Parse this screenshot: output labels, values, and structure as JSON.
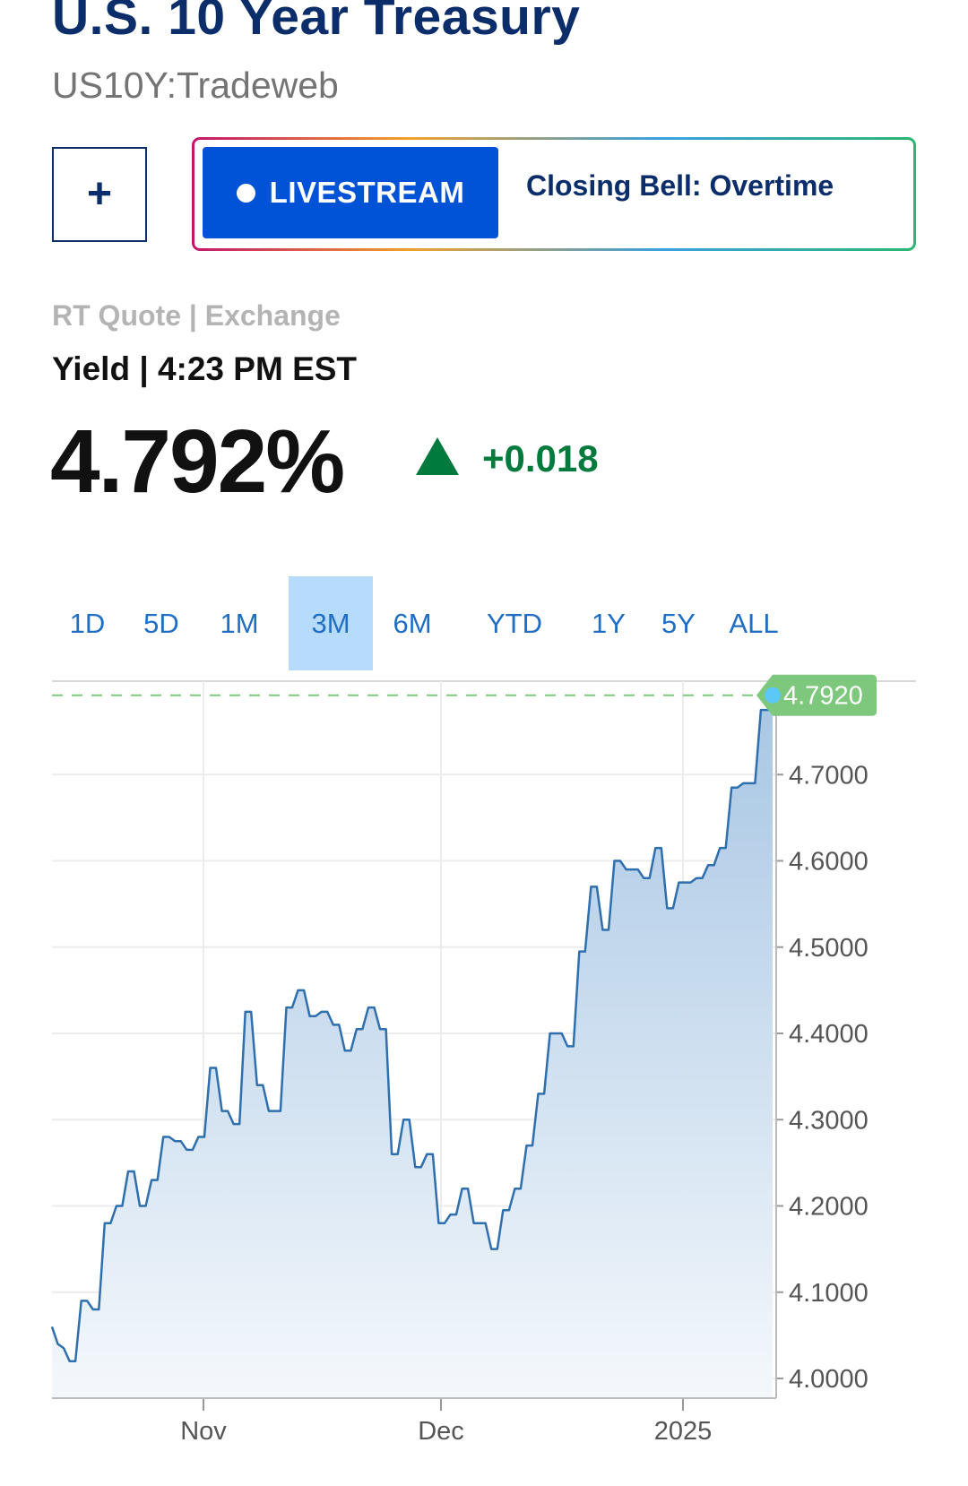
{
  "header": {
    "title": "U.S. 10 Year Treasury",
    "symbol": "US10Y:Tradeweb"
  },
  "actions": {
    "add_label": "+",
    "live_label": "LIVESTREAM",
    "show_title": "Closing Bell: Overtime"
  },
  "quote": {
    "source": "RT Quote | Exchange",
    "yield_time": "Yield | 4:23 PM EST",
    "price": "4.792%",
    "change": "+0.018",
    "direction": "up"
  },
  "colors": {
    "title": "#0b2e6b",
    "live_button": "#0052d6",
    "positive": "#007a3d",
    "tab_text": "#1f6ec4",
    "tab_active_bg": "#b7dcfb",
    "line": "#2f6fae",
    "last_badge": "#7ec87e"
  },
  "range_tabs": [
    {
      "label": "1D",
      "active": false
    },
    {
      "label": "5D",
      "active": false
    },
    {
      "label": "1M",
      "active": false
    },
    {
      "label": "3M",
      "active": true
    },
    {
      "label": "6M",
      "active": false
    },
    {
      "label": "YTD",
      "active": false
    },
    {
      "label": "1Y",
      "active": false
    },
    {
      "label": "5Y",
      "active": false
    },
    {
      "label": "ALL",
      "active": false
    }
  ],
  "chart_data": {
    "type": "area",
    "ylim": [
      4.0,
      4.8
    ],
    "y_ticks": [
      "4.0000",
      "4.1000",
      "4.2000",
      "4.3000",
      "4.4000",
      "4.5000",
      "4.6000",
      "4.7000"
    ],
    "x_ticks": [
      "Nov",
      "Dec",
      "2025"
    ],
    "last_value": "4.7920",
    "y_axis_position": "right",
    "grid": true,
    "values": [
      4.06,
      4.04,
      4.035,
      4.02,
      4.02,
      4.09,
      4.09,
      4.08,
      4.08,
      4.18,
      4.18,
      4.2,
      4.2,
      4.24,
      4.24,
      4.2,
      4.2,
      4.23,
      4.23,
      4.28,
      4.28,
      4.275,
      4.275,
      4.265,
      4.265,
      4.28,
      4.28,
      4.36,
      4.36,
      4.31,
      4.31,
      4.295,
      4.295,
      4.425,
      4.425,
      4.34,
      4.34,
      4.31,
      4.31,
      4.31,
      4.43,
      4.43,
      4.45,
      4.45,
      4.42,
      4.42,
      4.425,
      4.425,
      4.41,
      4.41,
      4.38,
      4.38,
      4.405,
      4.405,
      4.43,
      4.43,
      4.405,
      4.405,
      4.26,
      4.26,
      4.3,
      4.3,
      4.245,
      4.245,
      4.26,
      4.26,
      4.18,
      4.18,
      4.19,
      4.19,
      4.22,
      4.22,
      4.18,
      4.18,
      4.18,
      4.15,
      4.15,
      4.195,
      4.195,
      4.22,
      4.22,
      4.27,
      4.27,
      4.33,
      4.33,
      4.4,
      4.4,
      4.4,
      4.385,
      4.385,
      4.495,
      4.495,
      4.57,
      4.57,
      4.52,
      4.52,
      4.6,
      4.6,
      4.59,
      4.59,
      4.59,
      4.58,
      4.58,
      4.615,
      4.615,
      4.545,
      4.545,
      4.575,
      4.575,
      4.575,
      4.58,
      4.58,
      4.595,
      4.595,
      4.615,
      4.615,
      4.685,
      4.685,
      4.69,
      4.69,
      4.69,
      4.775,
      4.775,
      4.775
    ]
  }
}
